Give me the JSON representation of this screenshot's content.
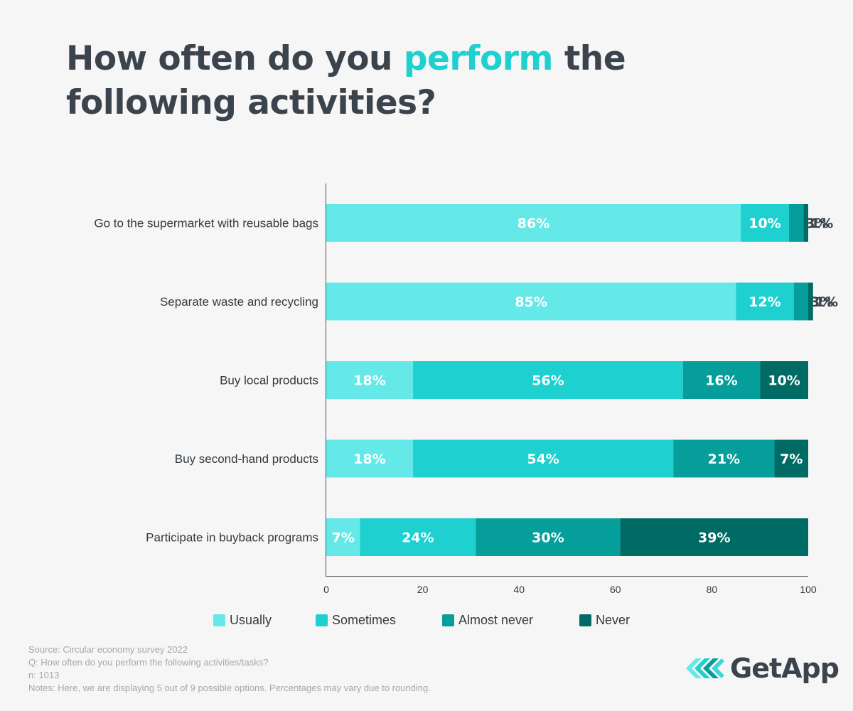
{
  "title": {
    "before": "How often do you ",
    "highlight": "perform",
    "after": " the following activities?"
  },
  "colors": {
    "usually": "#64e8e8",
    "sometimes": "#1ed0d0",
    "almost_never": "#069e9b",
    "never": "#006a65",
    "title_highlight": "#1ed0d0",
    "axis": "#555555"
  },
  "chart_data": {
    "type": "bar",
    "orientation": "horizontal",
    "stacked": true,
    "title": "How often do you perform the following activities?",
    "categories": [
      "Go to the supermarket with reusable bags",
      "Separate waste and recycling",
      "Buy local products",
      "Buy second-hand products",
      "Participate in buyback programs"
    ],
    "series": [
      {
        "name": "Usually",
        "values": [
          86,
          85,
          18,
          18,
          7
        ]
      },
      {
        "name": "Sometimes",
        "values": [
          10,
          12,
          56,
          54,
          24
        ]
      },
      {
        "name": "Almost never",
        "values": [
          3,
          3,
          16,
          21,
          30
        ]
      },
      {
        "name": "Never",
        "values": [
          1,
          1,
          10,
          7,
          39
        ]
      }
    ],
    "xlim": [
      0,
      100
    ],
    "xticks": [
      "0",
      "20",
      "40",
      "60",
      "80",
      "100"
    ],
    "legend_position": "bottom",
    "grid": false
  },
  "footer": {
    "source": "Source: Circular economy survey 2022",
    "question": "Q: How often do you perform the following activities/tasks?",
    "n": "n: 1013",
    "notes": "Notes: Here, we are displaying 5 out of 9 possible options. Percentages may vary due to rounding."
  },
  "logo": {
    "text": "GetApp",
    "icon": "getapp-chevrons-icon"
  }
}
